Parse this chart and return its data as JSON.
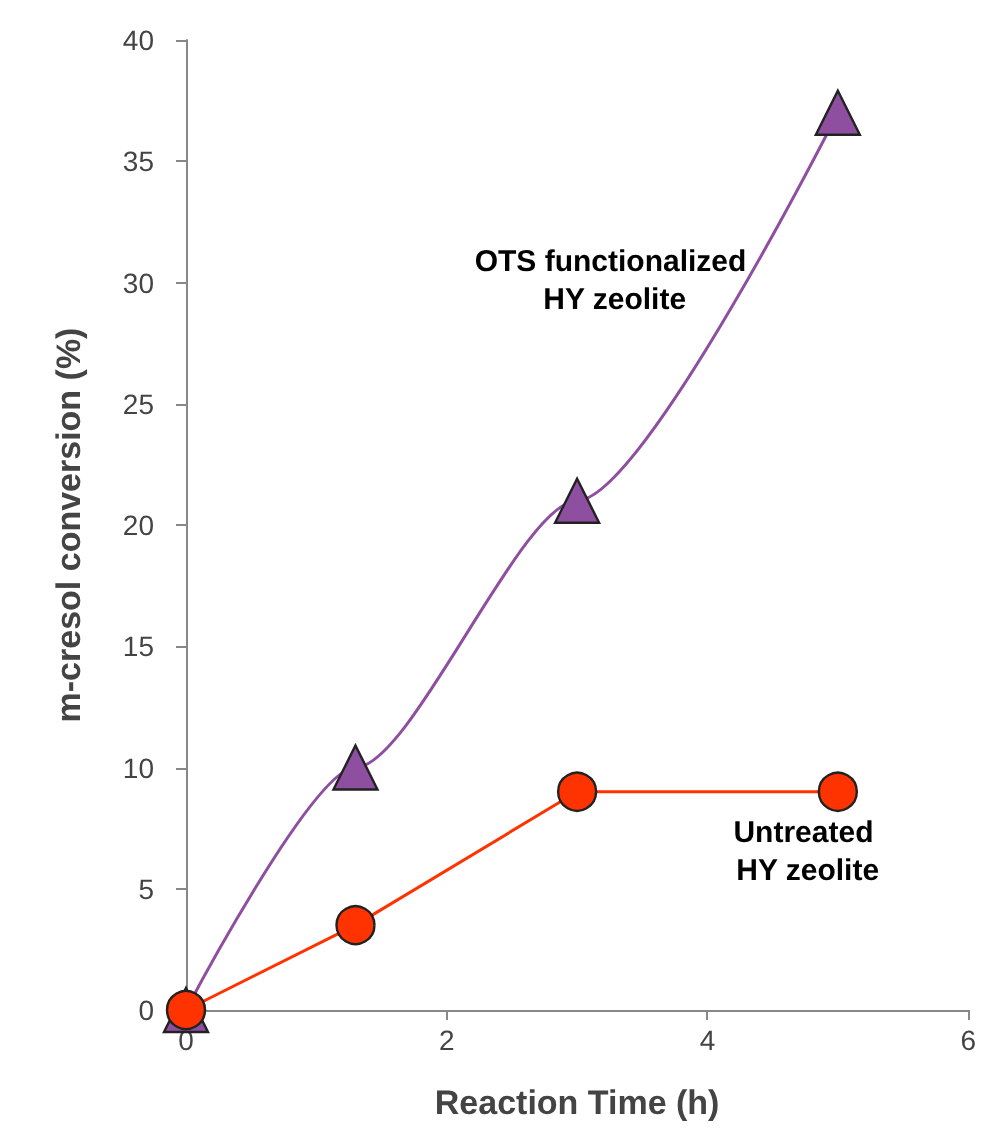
{
  "chart_data": {
    "type": "line",
    "xlabel": "Reaction Time (h)",
    "ylabel": "m-cresol conversion (%)",
    "x": [
      0,
      1.3,
      3,
      5
    ],
    "series": [
      {
        "name": "OTS functionalized HY zeolite",
        "color": "#8e4fa0",
        "marker": "triangle",
        "values": [
          0,
          10,
          21,
          37
        ]
      },
      {
        "name": "Untreated HY zeolite",
        "color": "#ff3300",
        "marker": "circle",
        "values": [
          0,
          3.5,
          9,
          9
        ]
      }
    ],
    "xlim": [
      0,
      6
    ],
    "xticks": [
      0,
      2,
      4,
      6
    ],
    "ylim": [
      0,
      40
    ],
    "yticks": [
      0,
      5,
      10,
      15,
      20,
      25,
      30,
      35,
      40
    ],
    "grid": false,
    "legend": false
  }
}
